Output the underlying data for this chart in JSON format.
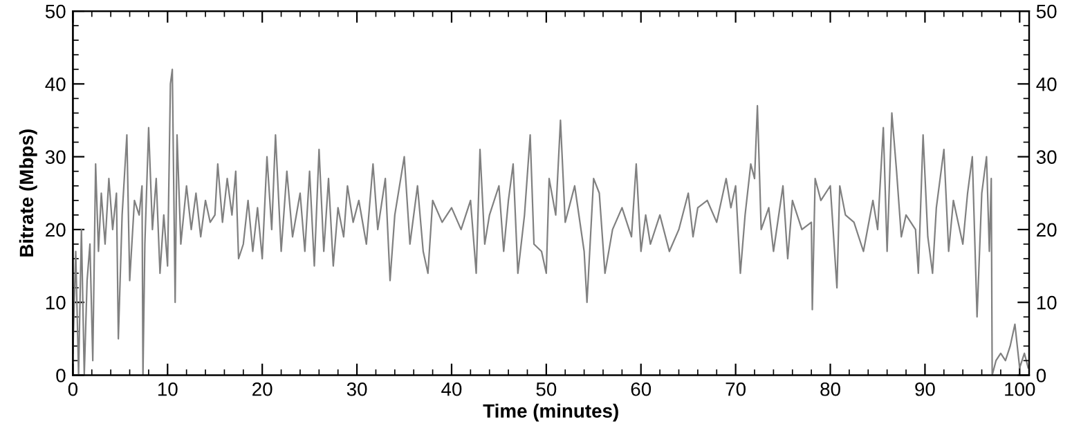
{
  "chart_data": {
    "type": "line",
    "xlabel": "Time (minutes)",
    "ylabel": "Bitrate (Mbps)",
    "xlim": [
      0,
      101
    ],
    "xticks": [
      0,
      10,
      20,
      30,
      40,
      50,
      60,
      70,
      80,
      90,
      100
    ],
    "ylim": [
      0,
      50
    ],
    "yticks": [
      0,
      10,
      20,
      30,
      40,
      50
    ],
    "y2lim": [
      0,
      50
    ],
    "y2ticks": [
      0,
      10,
      20,
      30,
      40,
      50
    ],
    "grid": false,
    "legend": false,
    "marker": "none",
    "line_style": "solid",
    "series": [
      {
        "color": "#808080",
        "x": [
          0,
          0.3,
          0.6,
          0.9,
          1.2,
          1.5,
          1.8,
          2.1,
          2.4,
          2.7,
          3.0,
          3.4,
          3.8,
          4.2,
          4.6,
          4.8,
          5.2,
          5.7,
          6.0,
          6.5,
          7.0,
          7.3,
          7.4,
          7.6,
          8.0,
          8.4,
          8.8,
          9.2,
          9.6,
          10.0,
          10.3,
          10.5,
          10.8,
          11.0,
          11.4,
          12,
          12.5,
          13,
          13.5,
          14,
          14.5,
          15,
          15.3,
          15.8,
          16.3,
          16.8,
          17.2,
          17.5,
          18,
          18.5,
          19,
          19.5,
          20.0,
          20.5,
          21,
          21.4,
          22,
          22.6,
          23.2,
          24,
          24.5,
          25,
          25.5,
          26,
          26.5,
          27,
          27.5,
          28,
          28.6,
          29,
          29.6,
          30.2,
          31,
          31.7,
          32.2,
          33,
          33.5,
          34,
          35,
          35.6,
          36.4,
          37,
          37.5,
          38,
          39,
          40,
          41,
          42,
          42.6,
          43,
          43.5,
          44,
          45,
          45.5,
          46,
          46.5,
          47,
          47.7,
          48.3,
          48.7,
          49.5,
          50,
          50.3,
          51,
          51.5,
          52,
          53,
          54,
          54.3,
          55,
          55.6,
          56.2,
          57,
          58,
          59,
          59.5,
          60,
          60.5,
          61,
          62,
          63,
          64,
          65,
          65.5,
          66,
          67,
          68,
          69,
          69.5,
          70,
          70.5,
          71,
          71.6,
          72,
          72.3,
          72.7,
          73.5,
          74,
          75,
          75.5,
          76,
          77,
          78,
          78.1,
          78.4,
          79,
          80,
          80.7,
          81,
          81.6,
          82.5,
          83.5,
          84.5,
          85,
          85.6,
          86,
          86.5,
          87,
          87.5,
          88,
          89,
          89.3,
          89.8,
          90.3,
          90.8,
          91.2,
          92,
          92.5,
          93,
          94,
          94.5,
          95,
          95.5,
          96,
          96.5,
          96.8,
          97,
          97.1,
          97.5,
          98,
          98.5,
          99,
          99.5,
          100,
          100.5,
          100.9
        ],
        "values": [
          3,
          17,
          0,
          20,
          0,
          13,
          18,
          2,
          29,
          17,
          25,
          18,
          27,
          20,
          25,
          5,
          22,
          33,
          13,
          24,
          22,
          26,
          0,
          18,
          34,
          20,
          27,
          14,
          22,
          15,
          40,
          42,
          10,
          33,
          18,
          26,
          20,
          25,
          19,
          24,
          21,
          22,
          29,
          21,
          27,
          22,
          28,
          16,
          18,
          24,
          17,
          23,
          16,
          30,
          20,
          33,
          17,
          28,
          19,
          25,
          17,
          28,
          15,
          31,
          17,
          27,
          15,
          23,
          19,
          26,
          21,
          24,
          18,
          29,
          20,
          27,
          13,
          22,
          30,
          18,
          26,
          17,
          14,
          24,
          21,
          23,
          20,
          24,
          14,
          31,
          18,
          22,
          26,
          17,
          24,
          29,
          14,
          22,
          33,
          18,
          17,
          14,
          27,
          22,
          35,
          21,
          26,
          17,
          10,
          27,
          25,
          14,
          20,
          23,
          19,
          29,
          17,
          22,
          18,
          22,
          17,
          20,
          25,
          19,
          23,
          24,
          21,
          27,
          23,
          26,
          14,
          22,
          29,
          27,
          37,
          20,
          23,
          17,
          26,
          16,
          24,
          20,
          21,
          9,
          27,
          24,
          26,
          12,
          26,
          22,
          21,
          17,
          24,
          20,
          34,
          17,
          36,
          28,
          19,
          22,
          20,
          14,
          33,
          19,
          14,
          23,
          31,
          17,
          24,
          18,
          25,
          30,
          8,
          25,
          30,
          17,
          27,
          0,
          2,
          3,
          2,
          4,
          7,
          1,
          3,
          1
        ]
      }
    ]
  }
}
